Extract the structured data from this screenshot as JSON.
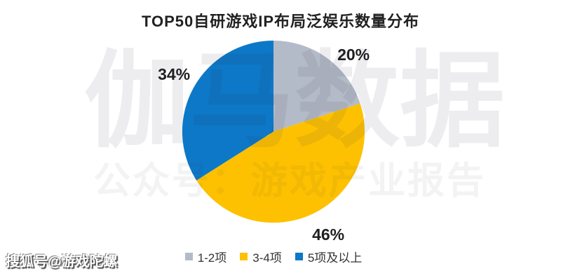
{
  "page": {
    "background": "#ffffff"
  },
  "header": {
    "title": "TOP50自研游戏IP布局泛娱乐数量分布"
  },
  "watermarks": {
    "brand": "伽马数据",
    "subtitle": "公众号：游戏产业报告",
    "footer": "搜狐号@游戏陀螺"
  },
  "colors": {
    "slice_gray": "#b4bbc8",
    "slice_yellow": "#fdc101",
    "slice_blue": "#0d78c7",
    "title_text": "#212121",
    "legend_text": "#333333"
  },
  "chart_data": {
    "type": "pie",
    "title": "TOP50自研游戏IP布局泛娱乐数量分布",
    "unit": "%",
    "start_angle_deg": 0,
    "direction": "clockwise",
    "legend_position": "bottom",
    "slices": [
      {
        "label": "1-2项",
        "value": 20,
        "display": "20%",
        "color": "#b4bbc8"
      },
      {
        "label": "3-4项",
        "value": 46,
        "display": "46%",
        "color": "#fdc101"
      },
      {
        "label": "5项及以上",
        "value": 34,
        "display": "34%",
        "color": "#0d78c7"
      }
    ]
  }
}
